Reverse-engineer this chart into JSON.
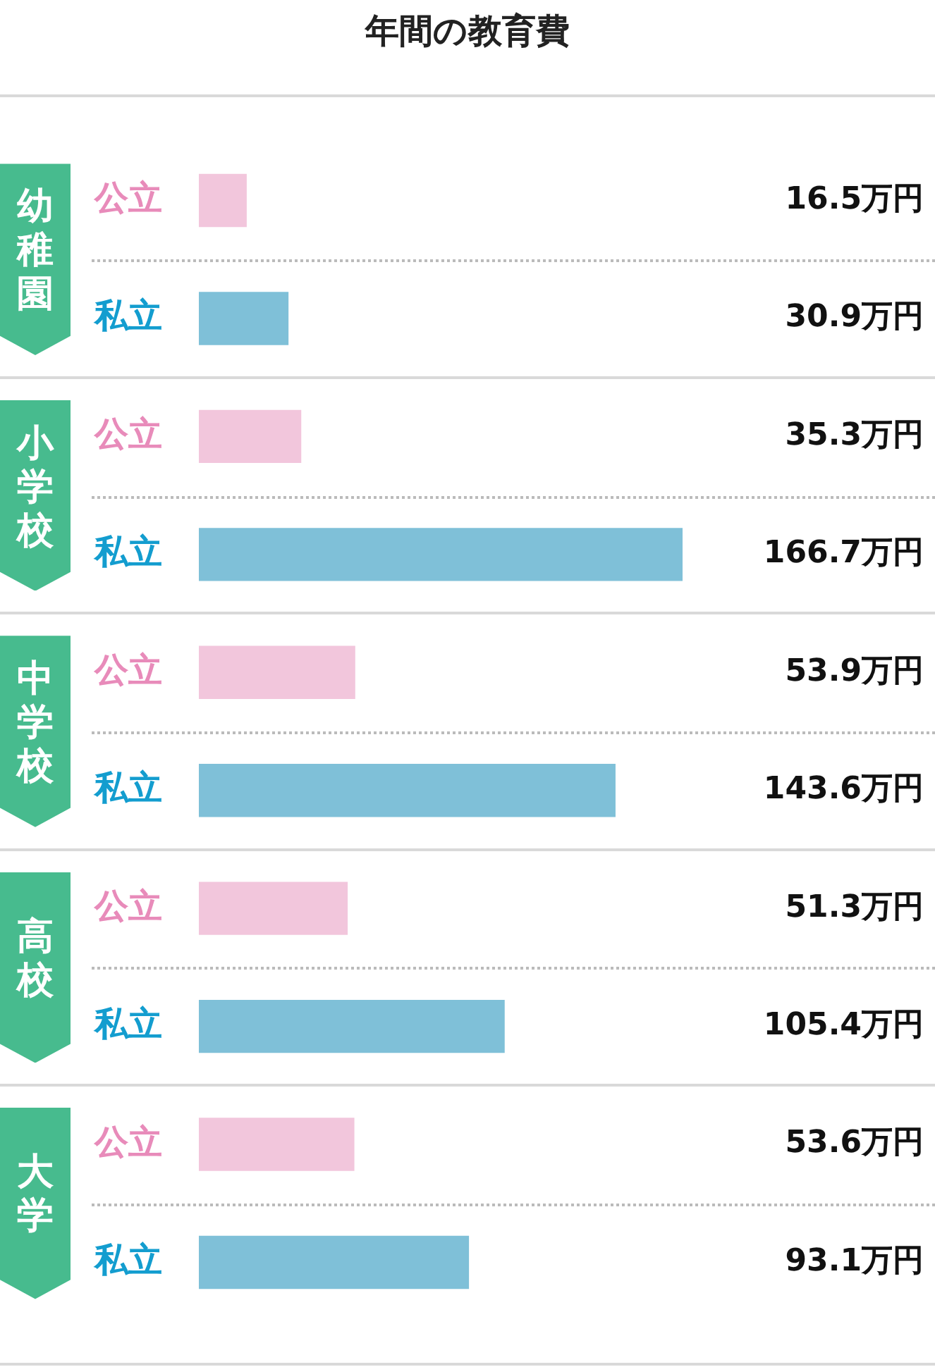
{
  "chart_data": {
    "type": "bar",
    "title": "年間の教育費",
    "orientation": "horizontal",
    "tick_labels": "y",
    "categories": [
      "公立",
      "私立",
      "公立",
      "私立",
      "公立",
      "私立",
      "公立",
      "私立",
      "公立",
      "私立"
    ],
    "values": [
      16.5,
      30.9,
      35.3,
      166.7,
      53.9,
      143.6,
      51.3,
      105.4,
      53.6,
      93.1
    ],
    "colors": [
      "#f2c6dc",
      "#7fc0d8",
      "#f2c6dc",
      "#7fc0d8",
      "#f2c6dc",
      "#7fc0d8",
      "#f2c6dc",
      "#7fc0d8",
      "#f2c6dc",
      "#7fc0d8"
    ],
    "value_labels": [
      "16.5万円",
      "30.9万円",
      "35.3万円",
      "166.7万円",
      "53.9万円",
      "143.6万円",
      "51.3万円",
      "105.4万円",
      "53.6万円",
      "93.1万円"
    ],
    "annotations": [
      "幼稚園",
      "小学校",
      "中学校",
      "高校",
      "大学"
    ]
  }
}
